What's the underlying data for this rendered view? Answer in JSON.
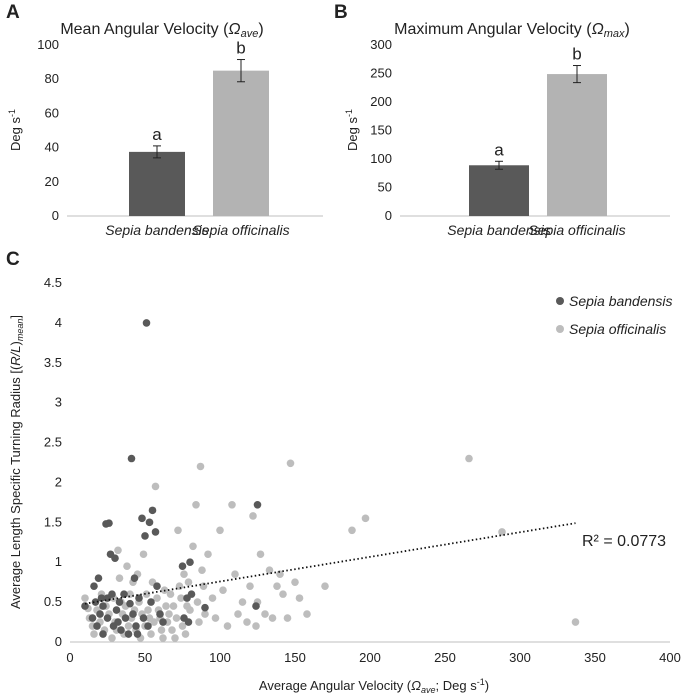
{
  "chart_data": [
    {
      "panel": "A",
      "type": "bar",
      "title": "Mean Angular Velocity (",
      "title_symbol": "Ω",
      "title_sub": "ave",
      "title_close": ")",
      "ylabel": "Deg s",
      "ylabel_sup": "-1",
      "ylim": [
        0,
        100
      ],
      "yticks": [
        0,
        20,
        40,
        60,
        80,
        100
      ],
      "categories": [
        "Sepia bandensis",
        "Sepia officinalis"
      ],
      "values": [
        37.5,
        85
      ],
      "errors": [
        3.5,
        6.5
      ],
      "sig_labels": [
        "a",
        "b"
      ],
      "colors": [
        "#595959",
        "#b3b3b3"
      ]
    },
    {
      "panel": "B",
      "type": "bar",
      "title": "Maximum Angular Velocity (",
      "title_symbol": "Ω",
      "title_sub": "max",
      "title_close": ")",
      "ylabel": "Deg s",
      "ylabel_sup": "-1",
      "ylim": [
        0,
        300
      ],
      "yticks": [
        0,
        50,
        100,
        150,
        200,
        250,
        300
      ],
      "categories": [
        "Sepia bandensis",
        "Sepia officinalis"
      ],
      "values": [
        89,
        249
      ],
      "errors": [
        7,
        15
      ],
      "sig_labels": [
        "a",
        "b"
      ],
      "colors": [
        "#595959",
        "#b3b3b3"
      ]
    },
    {
      "panel": "C",
      "type": "scatter",
      "xlabel": "Average Angular Velocity (",
      "xlabel_symbol": "Ω",
      "xlabel_sub": "ave",
      "xlabel_rest": "; Deg s",
      "xlabel_sup": "-1",
      "xlabel_close": ")",
      "ylabel": "Average Length Specific Turning Radius [(",
      "ylabel_italic": "R/L",
      "ylabel_mid": ")",
      "ylabel_sub": "mean",
      "ylabel_close": "]",
      "xlim": [
        0,
        400
      ],
      "ylim": [
        0,
        4.5
      ],
      "xticks": [
        0,
        50,
        100,
        150,
        200,
        250,
        300,
        350,
        400
      ],
      "yticks": [
        0,
        0.5,
        1,
        1.5,
        2,
        2.5,
        3,
        3.5,
        4,
        4.5
      ],
      "legend_position": "top-right",
      "r2_label": "R² = 0.0773",
      "trendline": {
        "x": [
          10,
          337
        ],
        "y": [
          0.48,
          1.49
        ],
        "style": "dotted"
      },
      "series": [
        {
          "name": "Sepia bandensis",
          "color": "#595959",
          "points": [
            [
              10,
              0.45
            ],
            [
              15,
              0.3
            ],
            [
              16,
              0.7
            ],
            [
              17,
              0.5
            ],
            [
              18,
              0.2
            ],
            [
              19,
              0.8
            ],
            [
              20,
              0.35
            ],
            [
              21,
              0.55
            ],
            [
              22,
              0.45
            ],
            [
              22,
              0.1
            ],
            [
              24,
              1.48
            ],
            [
              25,
              0.55
            ],
            [
              25,
              0.3
            ],
            [
              26,
              1.49
            ],
            [
              27,
              1.1
            ],
            [
              28,
              0.6
            ],
            [
              29,
              0.2
            ],
            [
              30,
              1.05
            ],
            [
              31,
              0.4
            ],
            [
              32,
              0.25
            ],
            [
              33,
              0.5
            ],
            [
              34,
              0.15
            ],
            [
              36,
              0.6
            ],
            [
              37,
              0.3
            ],
            [
              39,
              0.1
            ],
            [
              40,
              0.48
            ],
            [
              41,
              2.3
            ],
            [
              42,
              0.35
            ],
            [
              43,
              0.8
            ],
            [
              44,
              0.2
            ],
            [
              45,
              0.1
            ],
            [
              46,
              0.55
            ],
            [
              48,
              1.55
            ],
            [
              49,
              0.3
            ],
            [
              50,
              1.33
            ],
            [
              51,
              4.0
            ],
            [
              52,
              0.2
            ],
            [
              53,
              1.5
            ],
            [
              54,
              0.5
            ],
            [
              55,
              1.65
            ],
            [
              57,
              1.38
            ],
            [
              58,
              0.7
            ],
            [
              60,
              0.35
            ],
            [
              62,
              0.25
            ],
            [
              75,
              0.95
            ],
            [
              76,
              0.3
            ],
            [
              78,
              0.55
            ],
            [
              79,
              0.25
            ],
            [
              80,
              1.0
            ],
            [
              81,
              0.6
            ],
            [
              90,
              0.43
            ],
            [
              125,
              1.72
            ],
            [
              124,
              0.45
            ]
          ]
        },
        {
          "name": "Sepia officinalis",
          "color": "#bdbdbd",
          "points": [
            [
              10,
              0.55
            ],
            [
              12,
              0.42
            ],
            [
              13,
              0.3
            ],
            [
              15,
              0.2
            ],
            [
              16,
              0.1
            ],
            [
              18,
              0.4
            ],
            [
              20,
              0.25
            ],
            [
              21,
              0.6
            ],
            [
              23,
              0.15
            ],
            [
              24,
              0.45
            ],
            [
              26,
              0.35
            ],
            [
              28,
              0.05
            ],
            [
              29,
              0.55
            ],
            [
              30,
              0.25
            ],
            [
              31,
              0.15
            ],
            [
              32,
              1.15
            ],
            [
              33,
              0.8
            ],
            [
              34,
              0.5
            ],
            [
              35,
              0.35
            ],
            [
              36,
              0.1
            ],
            [
              37,
              0.45
            ],
            [
              38,
              0.95
            ],
            [
              39,
              0.2
            ],
            [
              40,
              0.6
            ],
            [
              41,
              0.3
            ],
            [
              42,
              0.75
            ],
            [
              43,
              0.4
            ],
            [
              44,
              0.15
            ],
            [
              45,
              0.85
            ],
            [
              46,
              0.5
            ],
            [
              47,
              0.05
            ],
            [
              48,
              0.35
            ],
            [
              49,
              1.1
            ],
            [
              50,
              0.2
            ],
            [
              51,
              0.6
            ],
            [
              52,
              0.4
            ],
            [
              53,
              0.3
            ],
            [
              54,
              0.1
            ],
            [
              55,
              0.75
            ],
            [
              56,
              0.25
            ],
            [
              57,
              1.95
            ],
            [
              58,
              0.55
            ],
            [
              59,
              0.4
            ],
            [
              60,
              0.3
            ],
            [
              61,
              0.15
            ],
            [
              62,
              0.05
            ],
            [
              63,
              0.65
            ],
            [
              64,
              0.45
            ],
            [
              65,
              0.25
            ],
            [
              66,
              0.35
            ],
            [
              67,
              0.6
            ],
            [
              68,
              0.15
            ],
            [
              69,
              0.45
            ],
            [
              70,
              0.05
            ],
            [
              71,
              0.3
            ],
            [
              72,
              1.4
            ],
            [
              73,
              0.7
            ],
            [
              74,
              0.55
            ],
            [
              75,
              0.2
            ],
            [
              76,
              0.85
            ],
            [
              77,
              0.1
            ],
            [
              78,
              0.45
            ],
            [
              79,
              0.75
            ],
            [
              80,
              0.4
            ],
            [
              82,
              1.2
            ],
            [
              84,
              1.72
            ],
            [
              85,
              0.5
            ],
            [
              86,
              0.25
            ],
            [
              87,
              2.2
            ],
            [
              88,
              0.9
            ],
            [
              89,
              0.7
            ],
            [
              90,
              0.35
            ],
            [
              92,
              1.1
            ],
            [
              95,
              0.55
            ],
            [
              97,
              0.3
            ],
            [
              100,
              1.4
            ],
            [
              102,
              0.65
            ],
            [
              105,
              0.2
            ],
            [
              108,
              1.72
            ],
            [
              110,
              0.85
            ],
            [
              112,
              0.35
            ],
            [
              115,
              0.5
            ],
            [
              118,
              0.25
            ],
            [
              120,
              0.7
            ],
            [
              122,
              1.58
            ],
            [
              124,
              0.2
            ],
            [
              125,
              0.5
            ],
            [
              127,
              1.1
            ],
            [
              130,
              0.35
            ],
            [
              133,
              0.9
            ],
            [
              135,
              0.3
            ],
            [
              138,
              0.7
            ],
            [
              140,
              0.85
            ],
            [
              142,
              0.6
            ],
            [
              145,
              0.3
            ],
            [
              147,
              2.24
            ],
            [
              150,
              0.75
            ],
            [
              153,
              0.55
            ],
            [
              158,
              0.35
            ],
            [
              170,
              0.7
            ],
            [
              188,
              1.4
            ],
            [
              197,
              1.55
            ],
            [
              266,
              2.3
            ],
            [
              288,
              1.38
            ],
            [
              337,
              0.25
            ]
          ]
        }
      ]
    }
  ]
}
